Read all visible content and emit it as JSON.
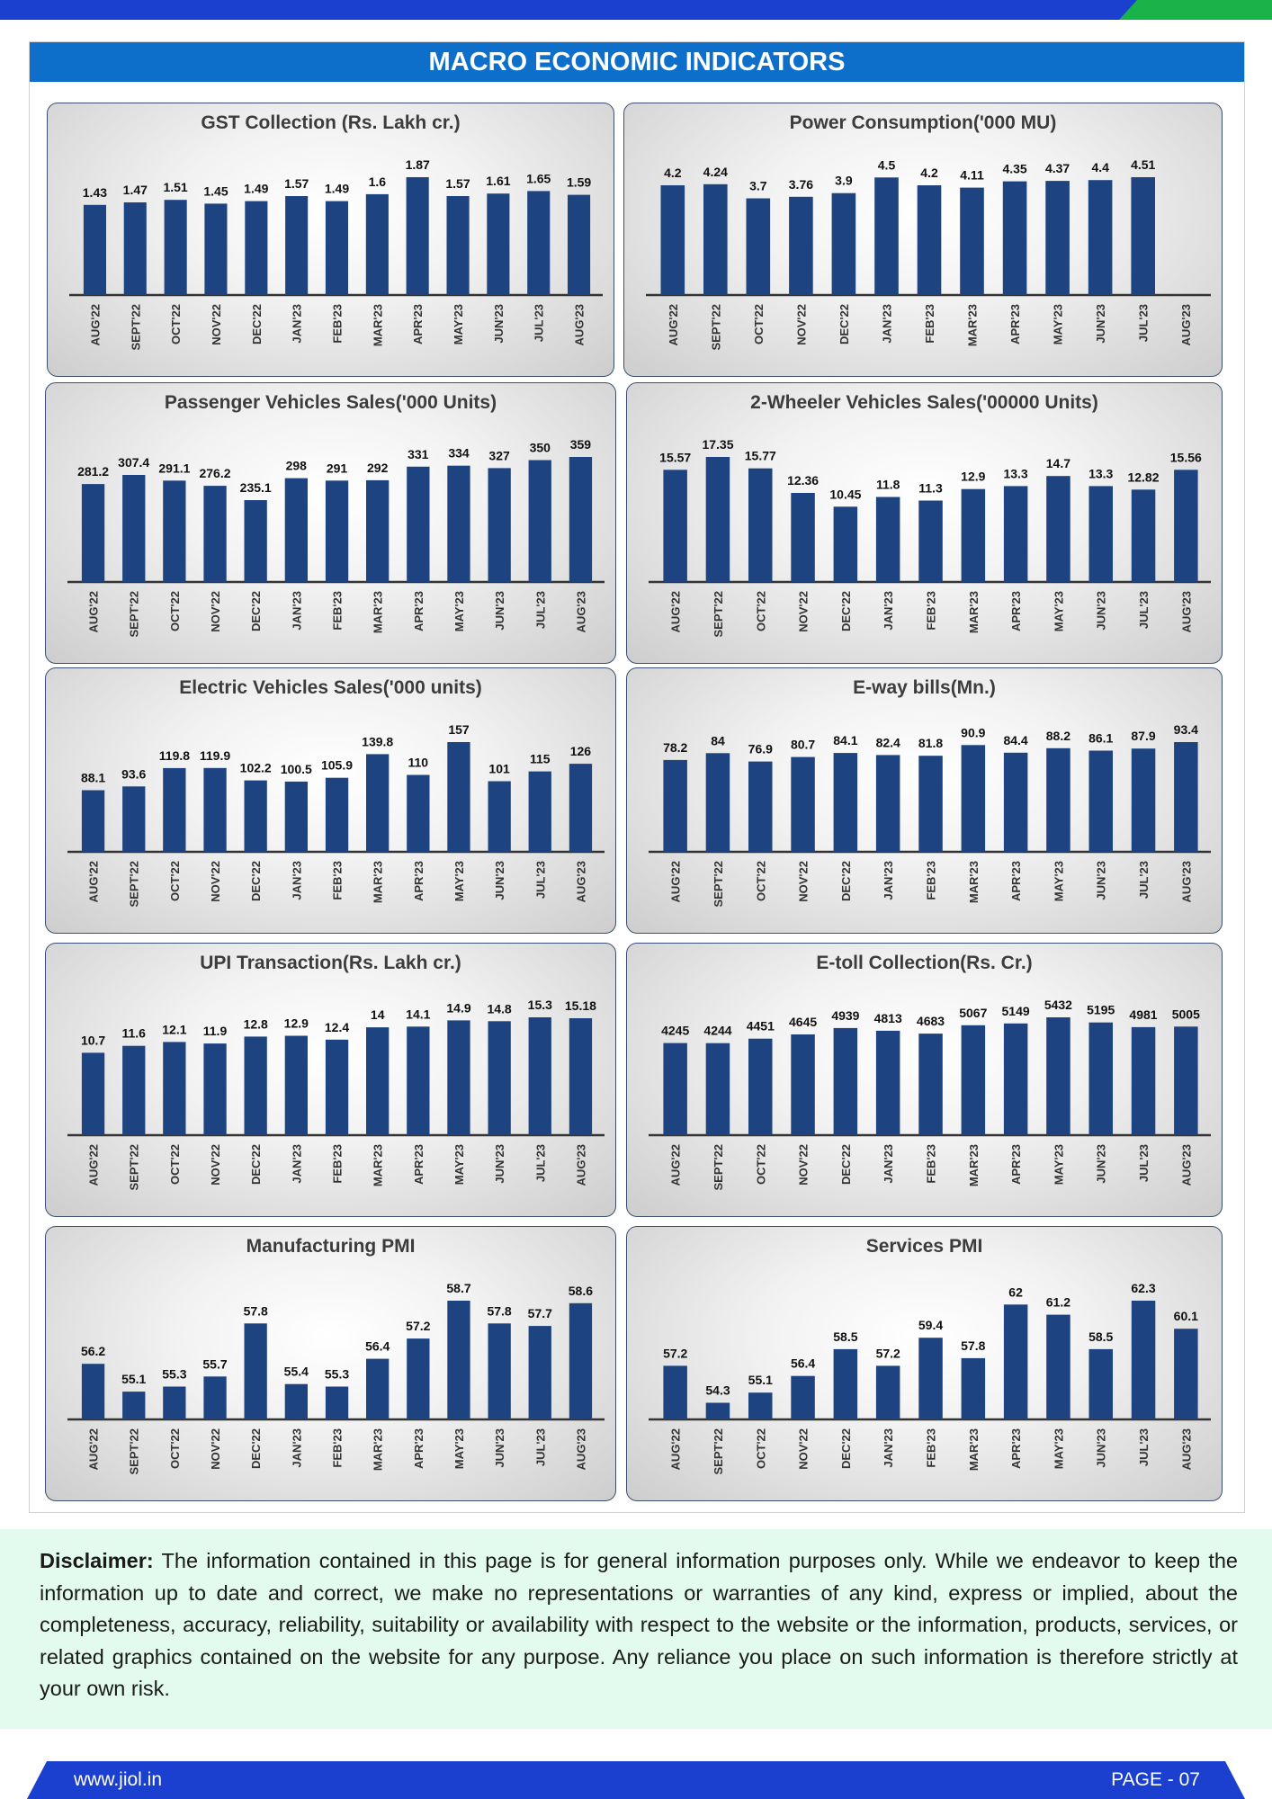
{
  "header": {
    "title": "MACRO ECONOMIC INDICATORS"
  },
  "colors": {
    "bar": "#1d4480",
    "header_bg": "#0d6fc9",
    "top_bar": "#1b3fcf",
    "accent_green": "#19b34a",
    "disclaimer_bg": "#e2fbee"
  },
  "disclaimer": {
    "label": "Disclaimer:",
    "text": " The information contained in this page is for general information purposes only.  While we endeavor to keep the information up to date and correct, we make no representations or warranties of any kind, express or implied, about the completeness, accuracy, reliability, suitability or availability with respect to the website or the information, products, services, or related graphics contained on the website for any purpose. Any reliance you place on such information is therefore strictly at your own risk."
  },
  "footer": {
    "website": "www.jiol.in",
    "page": "PAGE - 07"
  },
  "chart_data": [
    {
      "type": "bar",
      "title": "GST Collection (Rs. Lakh cr.)",
      "categories": [
        "AUG'22",
        "SEPT'22",
        "OCT'22",
        "NOV'22",
        "DEC'22",
        "JAN'23",
        "FEB'23",
        "MAR'23",
        "APR'23",
        "MAY'23",
        "JUN'23",
        "JUL'23",
        "AUG'23"
      ],
      "values": [
        1.43,
        1.47,
        1.51,
        1.45,
        1.49,
        1.57,
        1.49,
        1.6,
        1.87,
        1.57,
        1.61,
        1.65,
        1.59
      ],
      "ylim": [
        0,
        1.87
      ]
    },
    {
      "type": "bar",
      "title": "Power Consumption('000 MU)",
      "categories": [
        "AUG'22",
        "SEPT'22",
        "OCT'22",
        "NOV'22",
        "DEC'22",
        "JAN'23",
        "FEB'23",
        "MAR'23",
        "APR'23",
        "MAY'23",
        "JUN'23",
        "JUL'23",
        "AUG'23"
      ],
      "values": [
        4.2,
        4.24,
        3.7,
        3.76,
        3.9,
        4.5,
        4.2,
        4.11,
        4.35,
        4.37,
        4.4,
        4.51,
        null
      ],
      "ylim": [
        0,
        4.51
      ]
    },
    {
      "type": "bar",
      "title": "Passenger Vehicles Sales('000 Units)",
      "categories": [
        "AUG'22",
        "SEPT'22",
        "OCT'22",
        "NOV'22",
        "DEC'22",
        "JAN'23",
        "FEB'23",
        "MAR'23",
        "APR'23",
        "MAY'23",
        "JUN'23",
        "JUL'23",
        "AUG'23"
      ],
      "values": [
        281.2,
        307.4,
        291.1,
        276.2,
        235.1,
        298,
        291,
        292,
        331,
        334,
        327,
        350,
        359
      ],
      "ylim": [
        0,
        359
      ]
    },
    {
      "type": "bar",
      "title": "2-Wheeler Vehicles Sales('00000 Units)",
      "categories": [
        "AUG'22",
        "SEPT'22",
        "OCT'22",
        "NOV'22",
        "DEC'22",
        "JAN'23",
        "FEB'23",
        "MAR'23",
        "APR'23",
        "MAY'23",
        "JUN'23",
        "JUL'23",
        "AUG'23"
      ],
      "values": [
        15.57,
        17.35,
        15.77,
        12.36,
        10.45,
        11.8,
        11.3,
        12.9,
        13.3,
        14.7,
        13.3,
        12.82,
        15.56
      ],
      "ylim": [
        0,
        17.35
      ]
    },
    {
      "type": "bar",
      "title": "Electric Vehicles Sales('000 units)",
      "categories": [
        "AUG'22",
        "SEPT'22",
        "OCT'22",
        "NOV'22",
        "DEC'22",
        "JAN'23",
        "FEB'23",
        "MAR'23",
        "APR'23",
        "MAY'23",
        "JUN'23",
        "JUL'23",
        "AUG'23"
      ],
      "values": [
        88.1,
        93.6,
        119.8,
        119.9,
        102.2,
        100.5,
        105.9,
        139.8,
        110,
        157,
        101,
        115,
        126
      ],
      "ylim": [
        0,
        157
      ]
    },
    {
      "type": "bar",
      "title": "E-way bills(Mn.)",
      "categories": [
        "AUG'22",
        "SEPT'22",
        "OCT'22",
        "NOV'22",
        "DEC'22",
        "JAN'23",
        "FEB'23",
        "MAR'23",
        "APR'23",
        "MAY'23",
        "JUN'23",
        "JUL'23",
        "AUG'23"
      ],
      "values": [
        78.2,
        84,
        76.9,
        80.7,
        84.1,
        82.4,
        81.8,
        90.9,
        84.4,
        88.2,
        86.1,
        87.9,
        93.4
      ],
      "ylim": [
        0,
        93.4
      ]
    },
    {
      "type": "bar",
      "title": "UPI Transaction(Rs. Lakh cr.)",
      "categories": [
        "AUG'22",
        "SEPT'22",
        "OCT'22",
        "NOV'22",
        "DEC'22",
        "JAN'23",
        "FEB'23",
        "MAR'23",
        "APR'23",
        "MAY'23",
        "JUN'23",
        "JUL'23",
        "AUG'23"
      ],
      "values": [
        10.7,
        11.6,
        12.1,
        11.9,
        12.8,
        12.9,
        12.4,
        14,
        14.1,
        14.9,
        14.8,
        15.3,
        15.18
      ],
      "ylim": [
        0,
        15.3
      ]
    },
    {
      "type": "bar",
      "title": "E-toll Collection(Rs. Cr.)",
      "categories": [
        "AUG'22",
        "SEPT'22",
        "OCT'22",
        "NOV'22",
        "DEC'22",
        "JAN'23",
        "FEB'23",
        "MAR'23",
        "APR'23",
        "MAY'23",
        "JUN'23",
        "JUL'23",
        "AUG'23"
      ],
      "values": [
        4245,
        4244,
        4451,
        4645,
        4939,
        4813,
        4683,
        5067,
        5149,
        5432,
        5195,
        4981,
        5005
      ],
      "ylim": [
        0,
        5432
      ]
    },
    {
      "type": "bar",
      "title": "Manufacturing PMI",
      "categories": [
        "AUG'22",
        "SEPT'22",
        "OCT'22",
        "NOV'22",
        "DEC'22",
        "JAN'23",
        "FEB'23",
        "MAR'23",
        "APR'23",
        "MAY'23",
        "JUN'23",
        "JUL'23",
        "AUG'23"
      ],
      "values": [
        56.2,
        55.1,
        55.3,
        55.7,
        57.8,
        55.4,
        55.3,
        56.4,
        57.2,
        58.7,
        57.8,
        57.7,
        58.6
      ],
      "ylim": [
        54,
        58.7
      ]
    },
    {
      "type": "bar",
      "title": "Services PMI",
      "categories": [
        "AUG'22",
        "SEPT'22",
        "OCT'22",
        "NOV'22",
        "DEC'22",
        "JAN'23",
        "FEB'23",
        "MAR'23",
        "APR'23",
        "MAY'23",
        "JUN'23",
        "JUL'23",
        "AUG'23"
      ],
      "values": [
        57.2,
        54.3,
        55.1,
        56.4,
        58.5,
        57.2,
        59.4,
        57.8,
        62,
        61.2,
        58.5,
        62.3,
        60.1
      ],
      "ylim": [
        53,
        62.3
      ]
    }
  ]
}
